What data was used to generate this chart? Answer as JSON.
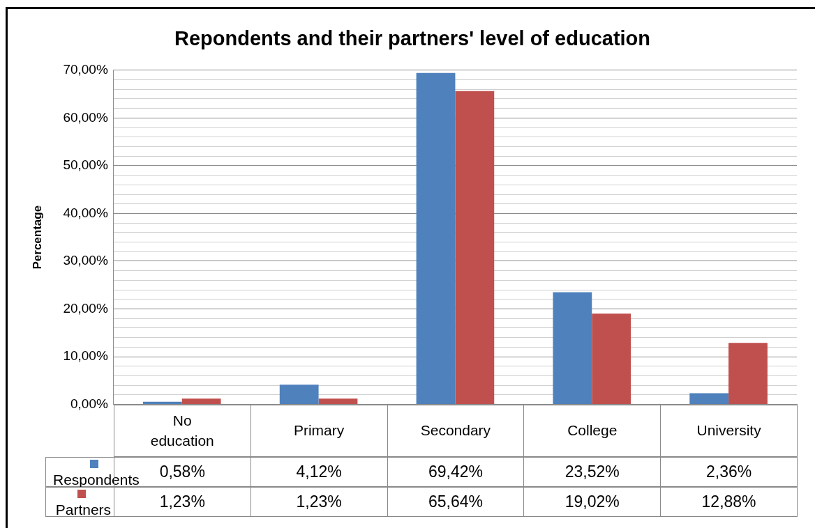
{
  "chart_data": {
    "type": "bar",
    "title": "Repondents and their partners' level of education",
    "ylabel": "Percentage",
    "categories": [
      "No education",
      "Primary",
      "Secondary",
      "College",
      "University"
    ],
    "series": [
      {
        "name": "Respondents",
        "color": "#4f81bd",
        "values": [
          0.58,
          4.12,
          69.42,
          23.52,
          2.36
        ],
        "value_labels": [
          "0,58%",
          "4,12%",
          "69,42%",
          "23,52%",
          "2,36%"
        ]
      },
      {
        "name": "Partners",
        "color": "#c0504d",
        "values": [
          1.23,
          1.23,
          65.64,
          19.02,
          12.88
        ],
        "value_labels": [
          "1,23%",
          "1,23%",
          "65,64%",
          "19,02%",
          "12,88%"
        ]
      }
    ],
    "ylim": [
      0,
      70
    ],
    "yticks": [
      {
        "value": 0,
        "label": "0,00%"
      },
      {
        "value": 2,
        "label": null
      },
      {
        "value": 4,
        "label": null
      },
      {
        "value": 6,
        "label": null
      },
      {
        "value": 8,
        "label": null
      },
      {
        "value": 10,
        "label": "10,00%"
      },
      {
        "value": 12,
        "label": null
      },
      {
        "value": 14,
        "label": null
      },
      {
        "value": 16,
        "label": null
      },
      {
        "value": 18,
        "label": null
      },
      {
        "value": 20,
        "label": "20,00%"
      },
      {
        "value": 22,
        "label": null
      },
      {
        "value": 24,
        "label": null
      },
      {
        "value": 26,
        "label": null
      },
      {
        "value": 28,
        "label": null
      },
      {
        "value": 30,
        "label": "30,00%"
      },
      {
        "value": 32,
        "label": null
      },
      {
        "value": 34,
        "label": null
      },
      {
        "value": 36,
        "label": null
      },
      {
        "value": 38,
        "label": null
      },
      {
        "value": 40,
        "label": "40,00%"
      },
      {
        "value": 42,
        "label": null
      },
      {
        "value": 44,
        "label": null
      },
      {
        "value": 46,
        "label": null
      },
      {
        "value": 48,
        "label": null
      },
      {
        "value": 50,
        "label": "50,00%"
      },
      {
        "value": 52,
        "label": null
      },
      {
        "value": 54,
        "label": null
      },
      {
        "value": 56,
        "label": null
      },
      {
        "value": 58,
        "label": null
      },
      {
        "value": 60,
        "label": "60,00%"
      },
      {
        "value": 62,
        "label": null
      },
      {
        "value": 64,
        "label": null
      },
      {
        "value": 66,
        "label": null
      },
      {
        "value": 68,
        "label": null
      },
      {
        "value": 70,
        "label": "70,00%"
      }
    ],
    "grid": "y",
    "legend": "bottom"
  }
}
